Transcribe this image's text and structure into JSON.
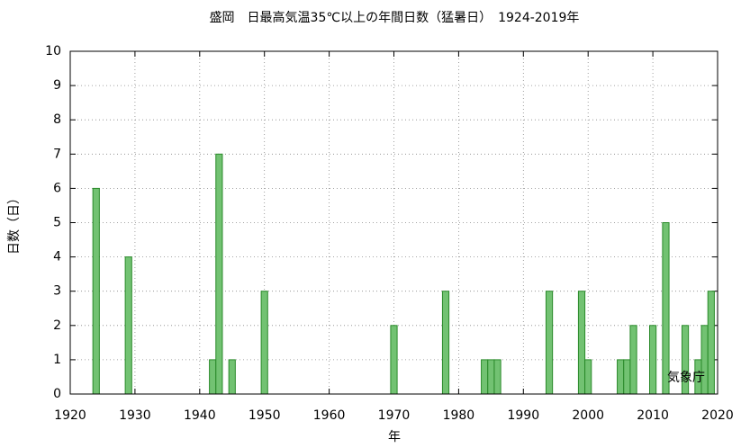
{
  "chart_data": {
    "type": "bar",
    "title": "盛岡　日最高気温35℃以上の年間日数（猛暑日）　1924-2019年",
    "x_label": "年",
    "y_label": "日数（日）",
    "annotation": "気象庁",
    "x": [
      1924,
      1929,
      1942,
      1943,
      1945,
      1950,
      1970,
      1978,
      1984,
      1985,
      1986,
      1994,
      1999,
      2000,
      2005,
      2006,
      2007,
      2010,
      2012,
      2015,
      2017,
      2018,
      2019
    ],
    "values": [
      6,
      4,
      1,
      7,
      1,
      3,
      2,
      3,
      1,
      1,
      1,
      3,
      3,
      1,
      1,
      1,
      2,
      2,
      5,
      2,
      1,
      2,
      3
    ],
    "color": "#72c272",
    "edge_color": "#2a8a2a",
    "xlim": [
      1920,
      2020
    ],
    "xticks": [
      1920,
      1930,
      1940,
      1950,
      1960,
      1970,
      1980,
      1990,
      2000,
      2010,
      2020
    ],
    "ylim": [
      0,
      10
    ],
    "yticks": [
      0,
      1,
      2,
      3,
      4,
      5,
      6,
      7,
      8,
      9,
      10
    ],
    "grid": true
  }
}
